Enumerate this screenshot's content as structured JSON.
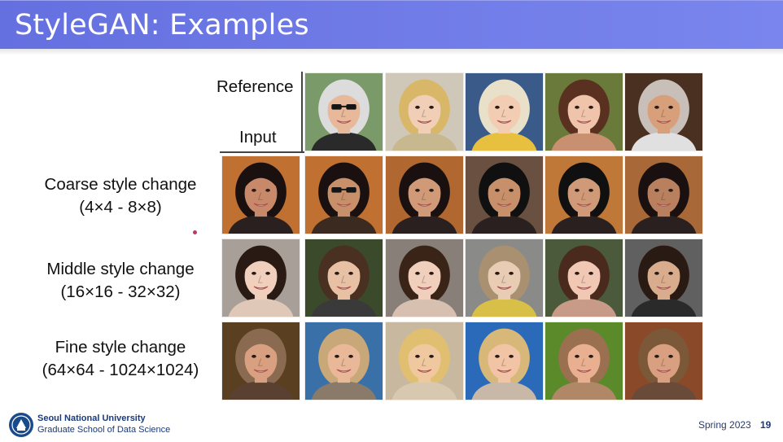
{
  "slide": {
    "title": "StyleGAN: Examples",
    "reference_label": "Reference",
    "input_label": "Input",
    "rows": [
      {
        "label": "Coarse style change",
        "range": "(4×4 - 8×8)"
      },
      {
        "label": "Middle style change",
        "range": "(16×16 - 32×32)"
      },
      {
        "label": "Fine style change",
        "range": "(64×64 - 1024×1024)"
      }
    ]
  },
  "footer": {
    "university": "Seoul National University",
    "school": "Graduate School of Data Science",
    "term": "Spring 2023",
    "page_number": "19"
  },
  "images": {
    "reference": [
      {
        "bg": "#7a9a6a",
        "skin": "#e8b89a",
        "hair": "#dcdcdc",
        "shirt": "#2a2a2a",
        "glasses": true
      },
      {
        "bg": "#cfc8b8",
        "skin": "#f0cfb6",
        "hair": "#d8b868",
        "shirt": "#c8b890"
      },
      {
        "bg": "#3a5a8a",
        "skin": "#f2cdb4",
        "hair": "#e8e0c8",
        "shirt": "#e8c040"
      },
      {
        "bg": "#6a7a3a",
        "skin": "#f0c4aa",
        "hair": "#5a3020",
        "shirt": "#c89070"
      },
      {
        "bg": "#4a3020",
        "skin": "#d8a07a",
        "hair": "#c8c0b8",
        "shirt": "#e0e0e0"
      }
    ],
    "input_coarse": {
      "bg": "#c07030",
      "skin": "#c8886a",
      "hair": "#1a1010",
      "shirt": "#2a2020"
    },
    "input_middle": {
      "bg": "#a8a098",
      "skin": "#f0d0bc",
      "hair": "#2a1a14",
      "shirt": "#e0c8b8"
    },
    "input_fine": {
      "bg": "#5a4020",
      "skin": "#d8a080",
      "hair": "#8a6a50",
      "shirt": "#5a4030"
    },
    "coarse": [
      {
        "bg": "#c07030",
        "skin": "#c8906a",
        "hair": "#1a1010",
        "shirt": "#3a2a20",
        "glasses": true
      },
      {
        "bg": "#b06830",
        "skin": "#d09a78",
        "hair": "#1a1010",
        "shirt": "#2a2020"
      },
      {
        "bg": "#6a5040",
        "skin": "#c8906a",
        "hair": "#101010",
        "shirt": "#2a2020"
      },
      {
        "bg": "#c07838",
        "skin": "#d09a78",
        "hair": "#101010",
        "shirt": "#2a2020"
      },
      {
        "bg": "#a86838",
        "skin": "#b8805e",
        "hair": "#1a1010",
        "shirt": "#2a2020"
      }
    ],
    "middle": [
      {
        "bg": "#3a4a2a",
        "skin": "#e8c0a4",
        "hair": "#4a3020",
        "shirt": "#3a3a3a"
      },
      {
        "bg": "#888078",
        "skin": "#f0d0bc",
        "hair": "#3a2418",
        "shirt": "#d8c0b0"
      },
      {
        "bg": "#8a8a88",
        "skin": "#e8ccb4",
        "hair": "#a89070",
        "shirt": "#d8c048"
      },
      {
        "bg": "#4a5a3a",
        "skin": "#f0c8b4",
        "hair": "#4a2a1c",
        "shirt": "#c89a88"
      },
      {
        "bg": "#606060",
        "skin": "#d8ac8c",
        "hair": "#2a1a14",
        "shirt": "#2a2a2a"
      }
    ],
    "fine": [
      {
        "bg": "#3a70a8",
        "skin": "#e8b898",
        "hair": "#c8a878",
        "shirt": "#8a7a6a"
      },
      {
        "bg": "#c8b8a0",
        "skin": "#f0c8a0",
        "hair": "#e0c070",
        "shirt": "#d8c8b0"
      },
      {
        "bg": "#2a6ab8",
        "skin": "#f0c4a4",
        "hair": "#d8b878",
        "shirt": "#c8b8a8"
      },
      {
        "bg": "#5a8a2a",
        "skin": "#e8b090",
        "hair": "#9a7050",
        "shirt": "#b08868"
      },
      {
        "bg": "#8a4a2a",
        "skin": "#d8a080",
        "hair": "#7a5838",
        "shirt": "#6a4a38"
      }
    ]
  }
}
